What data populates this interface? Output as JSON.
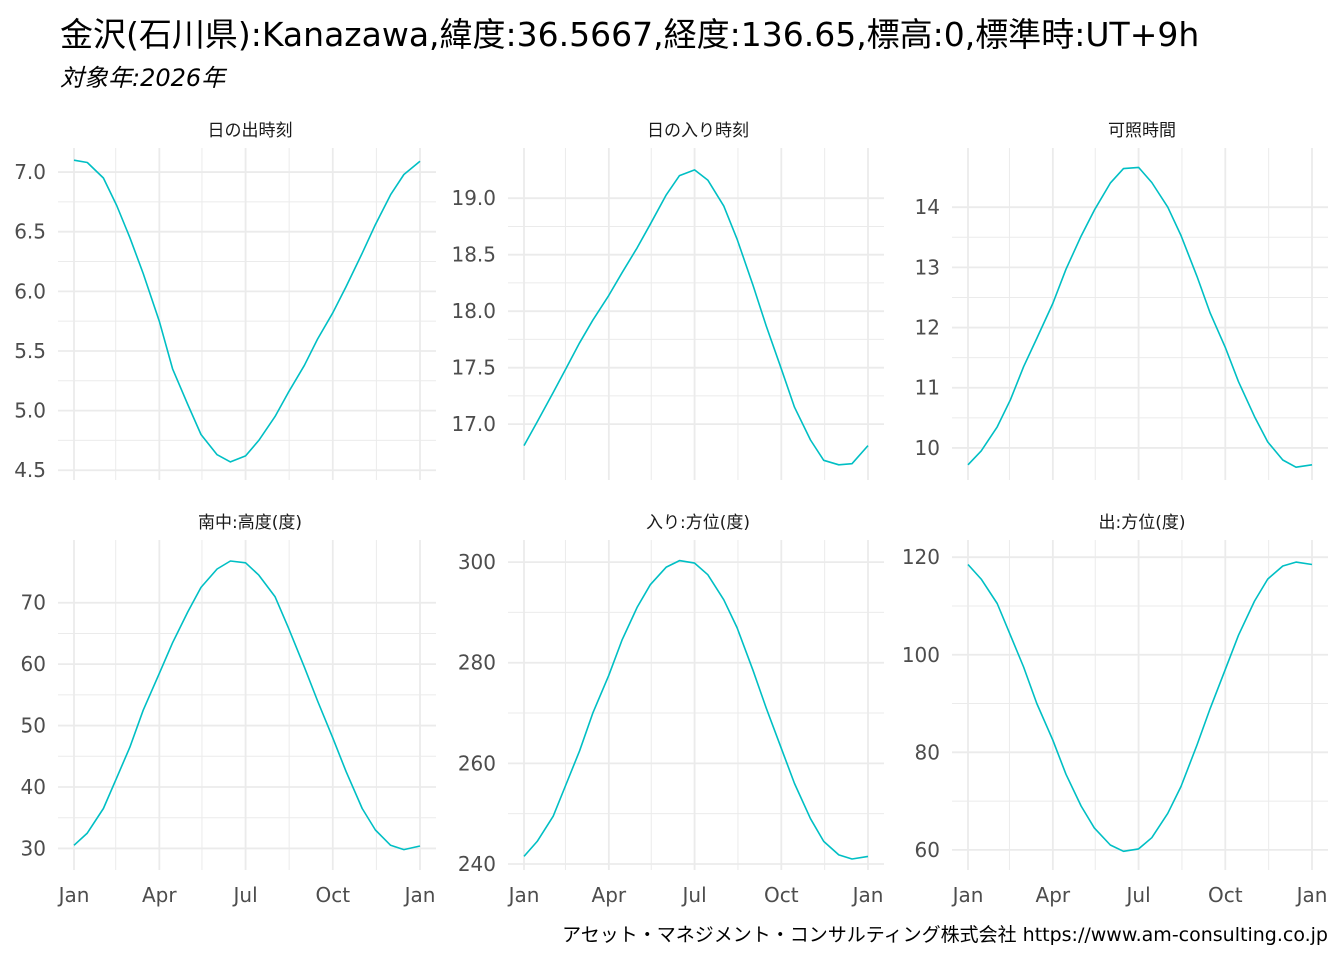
{
  "title": "金沢(石川県):Kanazawa,緯度:36.5667,経度:136.65,標高:0,標準時:UT+9h",
  "subtitle": "対象年:2026年",
  "caption": "アセット・マネジメント・コンサルティング株式会社 https://www.am-consulting.co.jp",
  "colors": {
    "line": "#00BFC4",
    "grid": "#ebebeb"
  },
  "chart_data": [
    {
      "type": "line",
      "title": "日の出時刻",
      "x_tick_labels": [
        "Jan",
        "Apr",
        "Jul",
        "Oct",
        "Jan"
      ],
      "y_ticks": [
        4.5,
        5.0,
        5.5,
        6.0,
        6.5,
        7.0
      ],
      "y_tick_labels": [
        "4.5",
        "5.0",
        "5.5",
        "6.0",
        "6.5",
        "7.0"
      ],
      "ylim": [
        4.46,
        7.16
      ],
      "series": [
        {
          "x": [
            "2026-01-01",
            "2026-01-15",
            "2026-02-01",
            "2026-02-15",
            "2026-03-01",
            "2026-03-15",
            "2026-04-01",
            "2026-04-15",
            "2026-05-01",
            "2026-05-15",
            "2026-06-01",
            "2026-06-15",
            "2026-07-01",
            "2026-07-15",
            "2026-08-01",
            "2026-08-15",
            "2026-09-01",
            "2026-09-15",
            "2026-10-01",
            "2026-10-15",
            "2026-11-01",
            "2026-11-15",
            "2026-12-01",
            "2026-12-15",
            "2027-01-01"
          ],
          "y": [
            7.1,
            7.08,
            6.95,
            6.72,
            6.45,
            6.15,
            5.75,
            5.35,
            5.05,
            4.8,
            4.63,
            4.57,
            4.62,
            4.75,
            4.95,
            5.15,
            5.38,
            5.6,
            5.82,
            6.04,
            6.32,
            6.56,
            6.81,
            6.98,
            7.09
          ]
        }
      ]
    },
    {
      "type": "line",
      "title": "日の入り時刻",
      "x_tick_labels": [
        "Jan",
        "Apr",
        "Jul",
        "Oct",
        "Jan"
      ],
      "y_ticks": [
        17.0,
        17.5,
        18.0,
        18.5,
        19.0
      ],
      "y_tick_labels": [
        "17.0",
        "17.5",
        "18.0",
        "18.5",
        "19.0"
      ],
      "ylim": [
        16.55,
        19.4
      ],
      "series": [
        {
          "x": [
            "2026-01-01",
            "2026-01-15",
            "2026-02-01",
            "2026-02-15",
            "2026-03-01",
            "2026-03-15",
            "2026-04-01",
            "2026-04-15",
            "2026-05-01",
            "2026-05-15",
            "2026-06-01",
            "2026-06-15",
            "2026-07-01",
            "2026-07-15",
            "2026-08-01",
            "2026-08-15",
            "2026-09-01",
            "2026-09-15",
            "2026-10-01",
            "2026-10-15",
            "2026-11-01",
            "2026-11-15",
            "2026-12-01",
            "2026-12-15",
            "2027-01-01"
          ],
          "y": [
            16.81,
            17.02,
            17.28,
            17.5,
            17.72,
            17.92,
            18.14,
            18.34,
            18.56,
            18.77,
            19.03,
            19.2,
            19.25,
            19.16,
            18.93,
            18.64,
            18.23,
            17.87,
            17.49,
            17.15,
            16.86,
            16.68,
            16.64,
            16.65,
            16.81
          ]
        }
      ]
    },
    {
      "type": "line",
      "title": "可照時間",
      "x_tick_labels": [
        "Jan",
        "Apr",
        "Jul",
        "Oct",
        "Jan"
      ],
      "y_ticks": [
        10,
        11,
        12,
        13,
        14
      ],
      "y_tick_labels": [
        "10",
        "11",
        "12",
        "13",
        "14"
      ],
      "ylim": [
        9.55,
        14.9
      ],
      "series": [
        {
          "x": [
            "2026-01-01",
            "2026-01-15",
            "2026-02-01",
            "2026-02-15",
            "2026-03-01",
            "2026-03-15",
            "2026-04-01",
            "2026-04-15",
            "2026-05-01",
            "2026-05-15",
            "2026-06-01",
            "2026-06-15",
            "2026-07-01",
            "2026-07-15",
            "2026-08-01",
            "2026-08-15",
            "2026-09-01",
            "2026-09-15",
            "2026-10-01",
            "2026-10-15",
            "2026-11-01",
            "2026-11-15",
            "2026-12-01",
            "2026-12-15",
            "2027-01-01"
          ],
          "y": [
            9.72,
            9.95,
            10.35,
            10.8,
            11.35,
            11.82,
            12.4,
            12.97,
            13.52,
            13.95,
            14.4,
            14.64,
            14.66,
            14.41,
            14.0,
            13.53,
            12.85,
            12.24,
            11.67,
            11.1,
            10.52,
            10.1,
            9.8,
            9.68,
            9.72
          ]
        }
      ]
    },
    {
      "type": "line",
      "title": "南中:高度(度)",
      "x_tick_labels": [
        "Jan",
        "Apr",
        "Jul",
        "Oct",
        "Jan"
      ],
      "y_ticks": [
        30,
        40,
        50,
        60,
        70
      ],
      "y_tick_labels": [
        "30",
        "40",
        "50",
        "60",
        "70"
      ],
      "ylim": [
        27.3,
        79.4
      ],
      "series": [
        {
          "x": [
            "2026-01-01",
            "2026-01-15",
            "2026-02-01",
            "2026-02-15",
            "2026-03-01",
            "2026-03-15",
            "2026-04-01",
            "2026-04-15",
            "2026-05-01",
            "2026-05-15",
            "2026-06-01",
            "2026-06-15",
            "2026-07-01",
            "2026-07-15",
            "2026-08-01",
            "2026-08-15",
            "2026-09-01",
            "2026-09-15",
            "2026-10-01",
            "2026-10-15",
            "2026-11-01",
            "2026-11-15",
            "2026-12-01",
            "2026-12-15",
            "2027-01-01"
          ],
          "y": [
            30.5,
            32.5,
            36.5,
            41.5,
            46.5,
            52.5,
            58.5,
            63.5,
            68.5,
            72.5,
            75.5,
            76.8,
            76.5,
            74.5,
            71.0,
            66.0,
            59.5,
            54.0,
            48.0,
            42.5,
            36.5,
            33.0,
            30.5,
            29.8,
            30.4
          ]
        }
      ]
    },
    {
      "type": "line",
      "title": "入り:方位(度)",
      "x_tick_labels": [
        "Jan",
        "Apr",
        "Jul",
        "Oct",
        "Jan"
      ],
      "y_ticks": [
        240,
        260,
        280,
        300
      ],
      "y_tick_labels": [
        "240",
        "260",
        "280",
        "300"
      ],
      "ylim": [
        239.8,
        303.4
      ],
      "series": [
        {
          "x": [
            "2026-01-01",
            "2026-01-15",
            "2026-02-01",
            "2026-02-15",
            "2026-03-01",
            "2026-03-15",
            "2026-04-01",
            "2026-04-15",
            "2026-05-01",
            "2026-05-15",
            "2026-06-01",
            "2026-06-15",
            "2026-07-01",
            "2026-07-15",
            "2026-08-01",
            "2026-08-15",
            "2026-09-01",
            "2026-09-15",
            "2026-10-01",
            "2026-10-15",
            "2026-11-01",
            "2026-11-15",
            "2026-12-01",
            "2026-12-15",
            "2027-01-01"
          ],
          "y": [
            241.5,
            244.5,
            249.5,
            256.0,
            262.5,
            270.0,
            277.5,
            284.5,
            291.0,
            295.5,
            299.0,
            300.3,
            299.8,
            297.5,
            292.5,
            287.0,
            278.5,
            271.0,
            263.0,
            256.0,
            249.0,
            244.5,
            241.8,
            241.0,
            241.5
          ]
        }
      ]
    },
    {
      "type": "line",
      "title": "出:方位(度)",
      "x_tick_labels": [
        "Jan",
        "Apr",
        "Jul",
        "Oct",
        "Jan"
      ],
      "y_ticks": [
        60,
        80,
        100,
        120
      ],
      "y_tick_labels": [
        "60",
        "80",
        "100",
        "120"
      ],
      "ylim": [
        56.9,
        122.5
      ],
      "series": [
        {
          "x": [
            "2026-01-01",
            "2026-01-15",
            "2026-02-01",
            "2026-02-15",
            "2026-03-01",
            "2026-03-15",
            "2026-04-01",
            "2026-04-15",
            "2026-05-01",
            "2026-05-15",
            "2026-06-01",
            "2026-06-15",
            "2026-07-01",
            "2026-07-15",
            "2026-08-01",
            "2026-08-15",
            "2026-09-01",
            "2026-09-15",
            "2026-10-01",
            "2026-10-15",
            "2026-11-01",
            "2026-11-15",
            "2026-12-01",
            "2026-12-15",
            "2027-01-01"
          ],
          "y": [
            118.5,
            115.5,
            110.5,
            104.0,
            97.5,
            90.0,
            82.5,
            75.5,
            69.0,
            64.5,
            61.0,
            59.7,
            60.2,
            62.5,
            67.5,
            73.0,
            81.5,
            89.0,
            97.0,
            104.0,
            111.0,
            115.5,
            118.2,
            119.0,
            118.5
          ]
        }
      ]
    }
  ]
}
